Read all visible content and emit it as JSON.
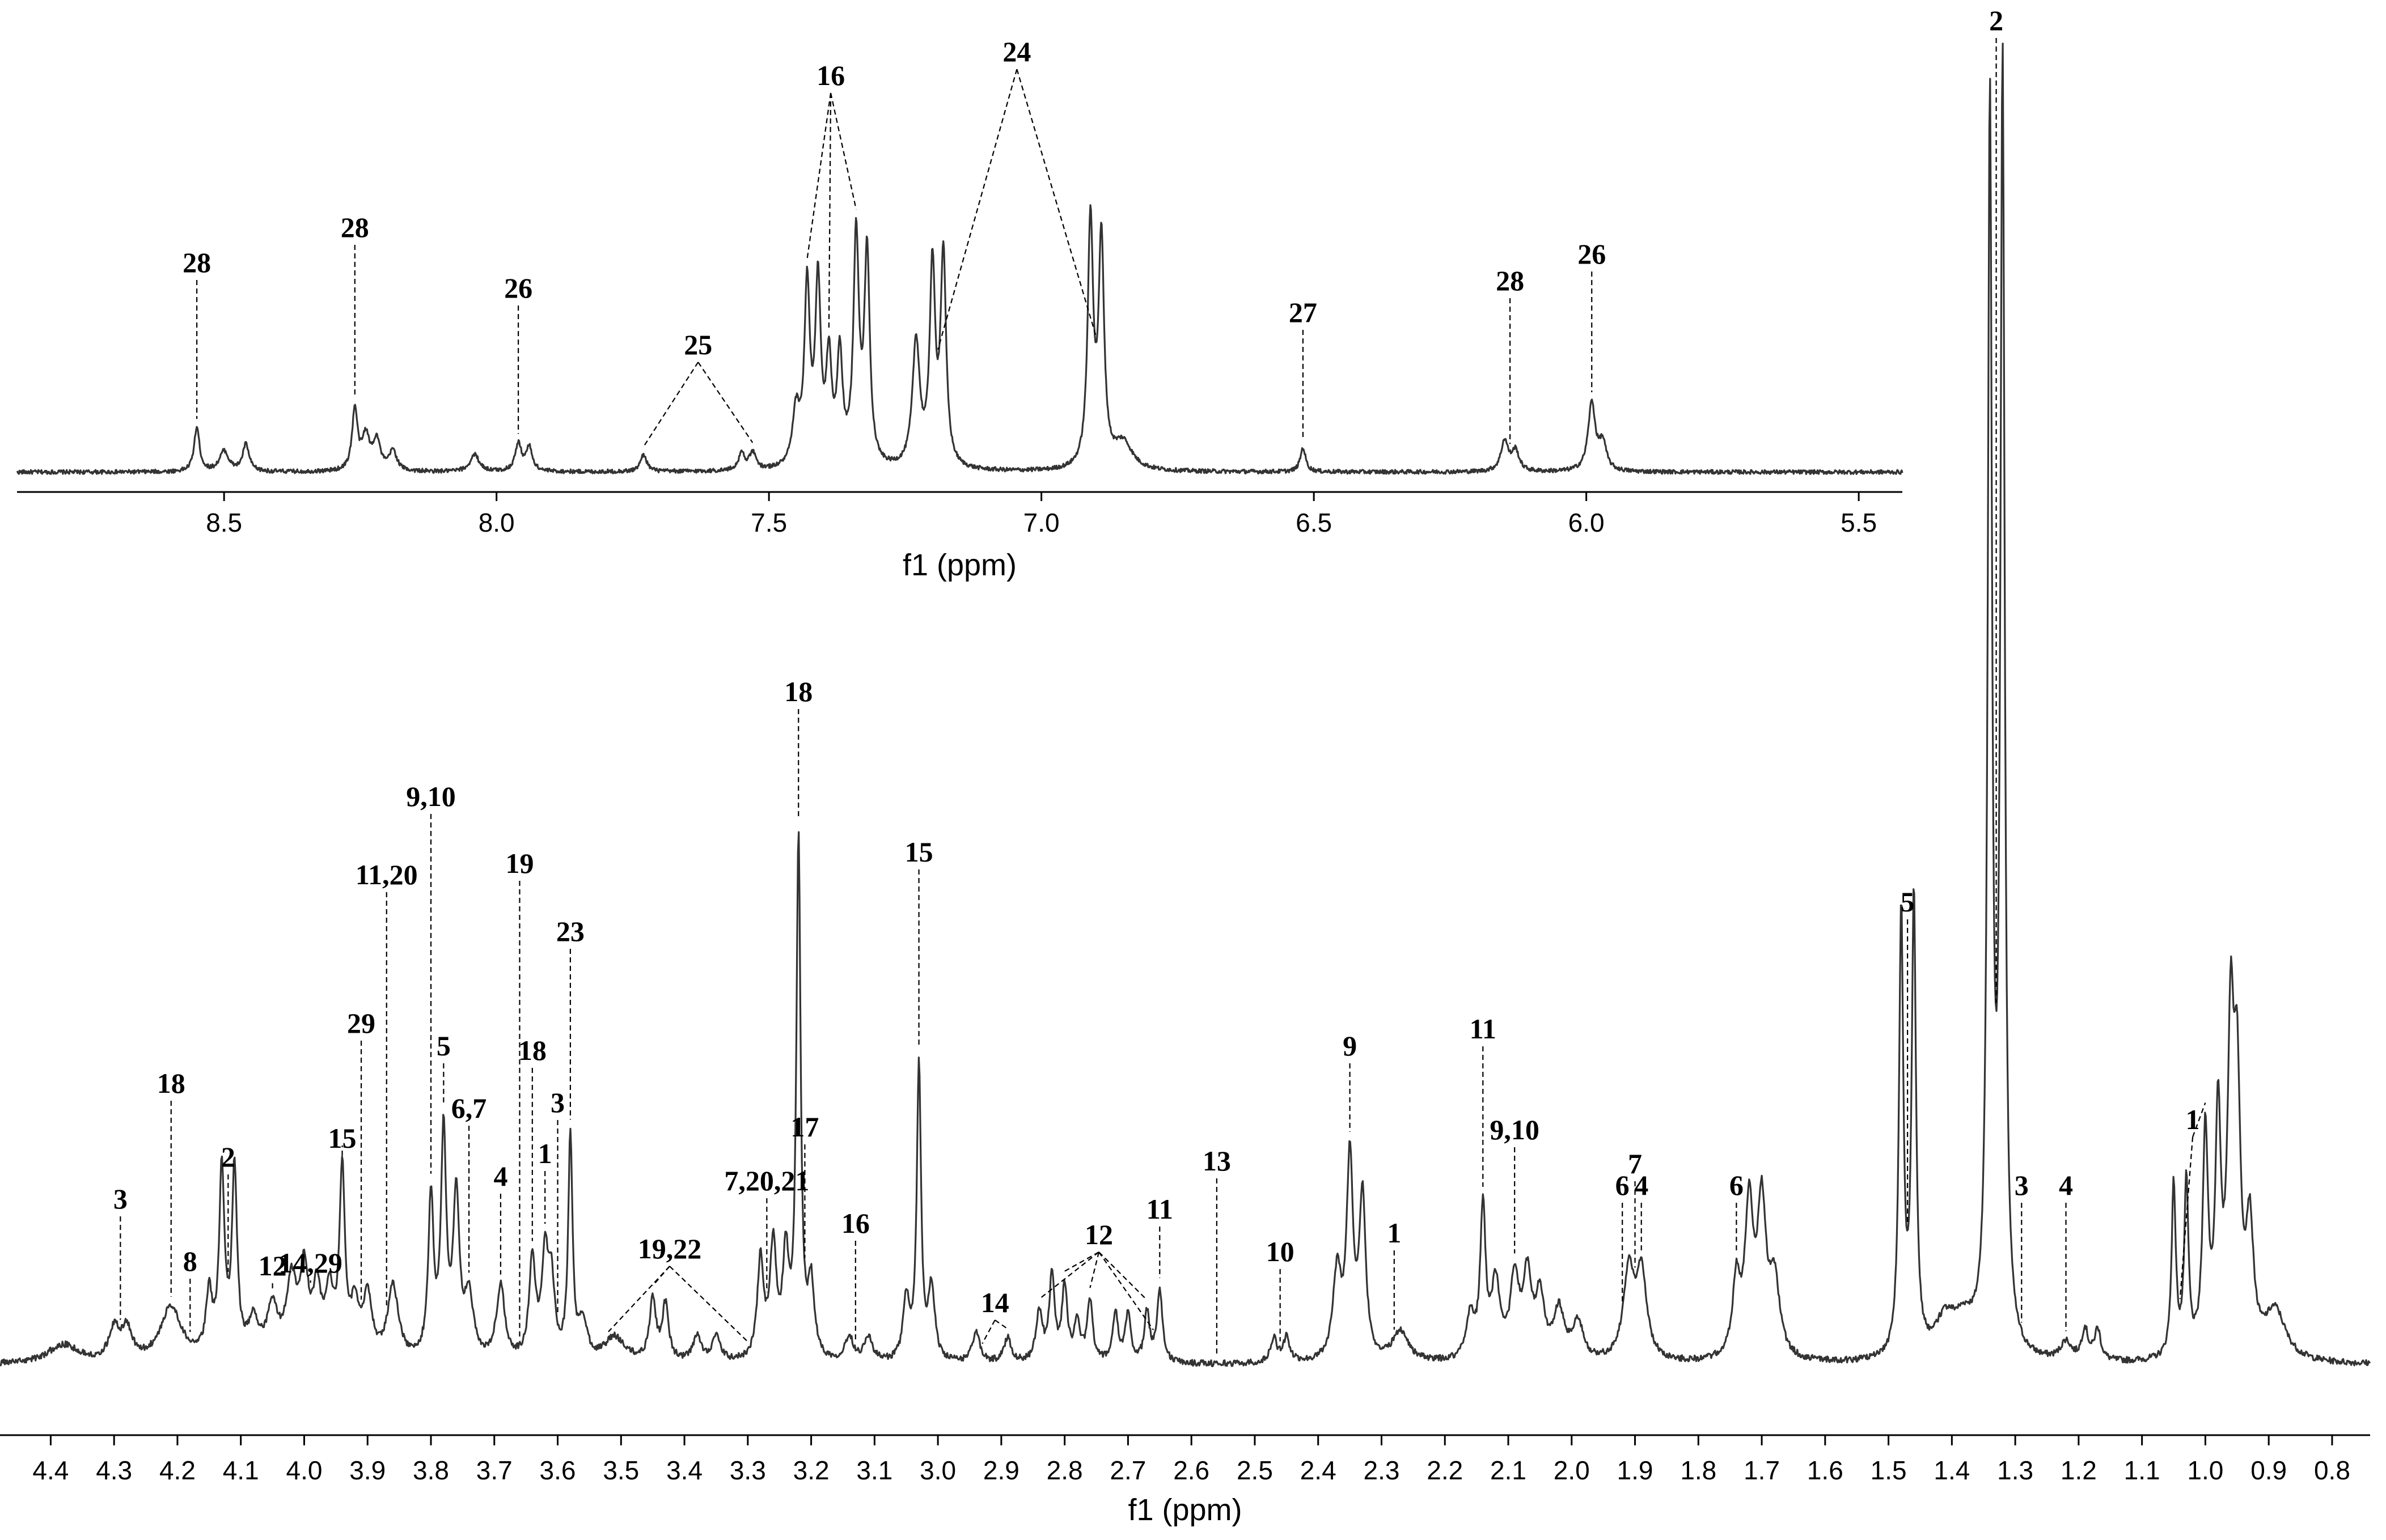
{
  "chart_data": [
    {
      "type": "line",
      "name": "aromatic region",
      "title": "",
      "xlabel": "f1 (ppm)",
      "ylabel": "",
      "xlim": [
        8.88,
        5.42
      ],
      "reversed_x": true,
      "grid": false,
      "ticks": [
        8.5,
        8.0,
        7.5,
        7.0,
        6.5,
        6.0,
        5.5
      ],
      "tick_labels": [
        "8.5",
        "8.0",
        "7.5",
        "7.0",
        "6.5",
        "6.0",
        "5.5"
      ],
      "baseline": 2,
      "noise": 0.6,
      "peaks": [
        {
          "ppm": 8.55,
          "h": 13,
          "w": 0.006
        },
        {
          "ppm": 8.5,
          "h": 6,
          "w": 0.01
        },
        {
          "ppm": 8.46,
          "h": 8,
          "w": 0.007
        },
        {
          "ppm": 8.26,
          "h": 18,
          "w": 0.006
        },
        {
          "ppm": 8.24,
          "h": 10,
          "w": 0.008
        },
        {
          "ppm": 8.22,
          "h": 9,
          "w": 0.008
        },
        {
          "ppm": 8.19,
          "h": 6,
          "w": 0.008
        },
        {
          "ppm": 8.04,
          "h": 5,
          "w": 0.01
        },
        {
          "ppm": 7.96,
          "h": 8,
          "w": 0.007
        },
        {
          "ppm": 7.94,
          "h": 7,
          "w": 0.007
        },
        {
          "ppm": 7.73,
          "h": 5,
          "w": 0.007
        },
        {
          "ppm": 7.55,
          "h": 5,
          "w": 0.007
        },
        {
          "ppm": 7.53,
          "h": 5,
          "w": 0.007
        },
        {
          "ppm": 7.45,
          "h": 16,
          "w": 0.008
        },
        {
          "ppm": 7.43,
          "h": 52,
          "w": 0.006
        },
        {
          "ppm": 7.41,
          "h": 53,
          "w": 0.006
        },
        {
          "ppm": 7.39,
          "h": 30,
          "w": 0.006
        },
        {
          "ppm": 7.37,
          "h": 32,
          "w": 0.006
        },
        {
          "ppm": 7.34,
          "h": 67,
          "w": 0.006
        },
        {
          "ppm": 7.32,
          "h": 62,
          "w": 0.006
        },
        {
          "ppm": 7.23,
          "h": 37,
          "w": 0.008
        },
        {
          "ppm": 7.2,
          "h": 58,
          "w": 0.006
        },
        {
          "ppm": 7.18,
          "h": 62,
          "w": 0.006
        },
        {
          "ppm": 6.91,
          "h": 72,
          "w": 0.006
        },
        {
          "ppm": 6.89,
          "h": 66,
          "w": 0.006
        },
        {
          "ppm": 6.85,
          "h": 8,
          "w": 0.02
        },
        {
          "ppm": 6.52,
          "h": 7,
          "w": 0.006
        },
        {
          "ppm": 6.15,
          "h": 9,
          "w": 0.008
        },
        {
          "ppm": 6.13,
          "h": 6,
          "w": 0.008
        },
        {
          "ppm": 5.99,
          "h": 20,
          "w": 0.008
        },
        {
          "ppm": 5.97,
          "h": 8,
          "w": 0.008
        }
      ],
      "annotations": [
        {
          "label": "28",
          "targets": [
            8.55
          ]
        },
        {
          "label": "28",
          "targets": [
            8.26
          ]
        },
        {
          "label": "26",
          "targets": [
            7.96
          ]
        },
        {
          "label": "25",
          "targets": [
            7.73,
            7.53
          ]
        },
        {
          "label": "16",
          "targets": [
            7.43,
            7.39,
            7.34
          ]
        },
        {
          "label": "24",
          "targets": [
            7.19,
            6.9
          ]
        },
        {
          "label": "27",
          "targets": [
            6.52
          ]
        },
        {
          "label": "28",
          "targets": [
            6.14
          ]
        },
        {
          "label": "26",
          "targets": [
            5.99
          ]
        }
      ]
    },
    {
      "type": "line",
      "name": "aliphatic region",
      "title": "",
      "xlabel": "f1 (ppm)",
      "ylabel": "",
      "xlim": [
        4.48,
        0.74
      ],
      "reversed_x": true,
      "grid": false,
      "ticks": [
        4.4,
        4.3,
        4.2,
        4.1,
        4.0,
        3.9,
        3.8,
        3.7,
        3.6,
        3.5,
        3.4,
        3.3,
        3.2,
        3.1,
        3.0,
        2.9,
        2.8,
        2.7,
        2.6,
        2.5,
        2.4,
        2.3,
        2.2,
        2.1,
        2.0,
        1.9,
        1.8,
        1.7,
        1.6,
        1.5,
        1.4,
        1.3,
        1.2,
        1.1,
        1.0,
        0.9,
        0.8
      ],
      "tick_labels": [
        "4.4",
        "4.3",
        "4.2",
        "4.1",
        "4.0",
        "3.9",
        "3.8",
        "3.7",
        "3.6",
        "3.5",
        "3.4",
        "3.3",
        "3.2",
        "3.1",
        "3.0",
        "2.9",
        "2.8",
        "2.7",
        "2.6",
        "2.5",
        "2.4",
        "2.3",
        "2.2",
        "2.1",
        "2.0",
        "1.9",
        "1.8",
        "1.7",
        "1.6",
        "1.5",
        "1.4",
        "1.3",
        "1.2",
        "1.1",
        "1.0",
        "0.9",
        "0.8"
      ],
      "baseline": 1,
      "noise": 0.25,
      "peaks": [
        {
          "ppm": 4.38,
          "h": 1.5,
          "w": 0.03
        },
        {
          "ppm": 4.3,
          "h": 2.5,
          "w": 0.01
        },
        {
          "ppm": 4.28,
          "h": 2.5,
          "w": 0.01
        },
        {
          "ppm": 4.21,
          "h": 4.5,
          "w": 0.02
        },
        {
          "ppm": 4.15,
          "h": 5,
          "w": 0.006
        },
        {
          "ppm": 4.13,
          "h": 15,
          "w": 0.005
        },
        {
          "ppm": 4.11,
          "h": 15,
          "w": 0.005
        },
        {
          "ppm": 4.08,
          "h": 3,
          "w": 0.01
        },
        {
          "ppm": 4.05,
          "h": 4,
          "w": 0.01
        },
        {
          "ppm": 4.02,
          "h": 6,
          "w": 0.01
        },
        {
          "ppm": 4.0,
          "h": 6.5,
          "w": 0.008
        },
        {
          "ppm": 3.98,
          "h": 5,
          "w": 0.008
        },
        {
          "ppm": 3.96,
          "h": 5,
          "w": 0.008
        },
        {
          "ppm": 3.94,
          "h": 15,
          "w": 0.005
        },
        {
          "ppm": 3.92,
          "h": 4,
          "w": 0.008
        },
        {
          "ppm": 3.9,
          "h": 5,
          "w": 0.008
        },
        {
          "ppm": 3.86,
          "h": 6,
          "w": 0.01
        },
        {
          "ppm": 3.8,
          "h": 13,
          "w": 0.005
        },
        {
          "ppm": 3.78,
          "h": 18,
          "w": 0.005
        },
        {
          "ppm": 3.76,
          "h": 13,
          "w": 0.006
        },
        {
          "ppm": 3.74,
          "h": 5,
          "w": 0.008
        },
        {
          "ppm": 3.69,
          "h": 6,
          "w": 0.008
        },
        {
          "ppm": 3.64,
          "h": 8,
          "w": 0.006
        },
        {
          "ppm": 3.62,
          "h": 8,
          "w": 0.006
        },
        {
          "ppm": 3.61,
          "h": 6,
          "w": 0.006
        },
        {
          "ppm": 3.58,
          "h": 18,
          "w": 0.004
        },
        {
          "ppm": 3.56,
          "h": 3,
          "w": 0.008
        },
        {
          "ppm": 3.51,
          "h": 2,
          "w": 0.02
        },
        {
          "ppm": 3.45,
          "h": 5,
          "w": 0.006
        },
        {
          "ppm": 3.43,
          "h": 4.5,
          "w": 0.006
        },
        {
          "ppm": 3.38,
          "h": 2,
          "w": 0.008
        },
        {
          "ppm": 3.35,
          "h": 2,
          "w": 0.008
        },
        {
          "ppm": 3.28,
          "h": 8,
          "w": 0.006
        },
        {
          "ppm": 3.26,
          "h": 9,
          "w": 0.006
        },
        {
          "ppm": 3.24,
          "h": 8,
          "w": 0.006
        },
        {
          "ppm": 3.22,
          "h": 42,
          "w": 0.004
        },
        {
          "ppm": 3.2,
          "h": 6,
          "w": 0.006
        },
        {
          "ppm": 3.14,
          "h": 2,
          "w": 0.008
        },
        {
          "ppm": 3.11,
          "h": 2,
          "w": 0.008
        },
        {
          "ppm": 3.05,
          "h": 5,
          "w": 0.006
        },
        {
          "ppm": 3.03,
          "h": 24,
          "w": 0.004
        },
        {
          "ppm": 3.01,
          "h": 6,
          "w": 0.006
        },
        {
          "ppm": 2.94,
          "h": 2.5,
          "w": 0.007
        },
        {
          "ppm": 2.89,
          "h": 2,
          "w": 0.007
        },
        {
          "ppm": 2.84,
          "h": 4,
          "w": 0.006
        },
        {
          "ppm": 2.82,
          "h": 7,
          "w": 0.005
        },
        {
          "ppm": 2.8,
          "h": 6,
          "w": 0.005
        },
        {
          "ppm": 2.78,
          "h": 3,
          "w": 0.006
        },
        {
          "ppm": 2.76,
          "h": 5,
          "w": 0.005
        },
        {
          "ppm": 2.72,
          "h": 4,
          "w": 0.005
        },
        {
          "ppm": 2.7,
          "h": 4,
          "w": 0.005
        },
        {
          "ppm": 2.67,
          "h": 4,
          "w": 0.005
        },
        {
          "ppm": 2.65,
          "h": 6,
          "w": 0.005
        },
        {
          "ppm": 2.47,
          "h": 2,
          "w": 0.006
        },
        {
          "ppm": 2.45,
          "h": 2,
          "w": 0.006
        },
        {
          "ppm": 2.37,
          "h": 7,
          "w": 0.008
        },
        {
          "ppm": 2.35,
          "h": 16,
          "w": 0.006
        },
        {
          "ppm": 2.33,
          "h": 13,
          "w": 0.006
        },
        {
          "ppm": 2.27,
          "h": 2.5,
          "w": 0.015
        },
        {
          "ppm": 2.16,
          "h": 3.5,
          "w": 0.008
        },
        {
          "ppm": 2.14,
          "h": 12,
          "w": 0.005
        },
        {
          "ppm": 2.12,
          "h": 6,
          "w": 0.008
        },
        {
          "ppm": 2.09,
          "h": 6.5,
          "w": 0.008
        },
        {
          "ppm": 2.07,
          "h": 6.5,
          "w": 0.008
        },
        {
          "ppm": 2.05,
          "h": 5,
          "w": 0.008
        },
        {
          "ppm": 2.02,
          "h": 4,
          "w": 0.01
        },
        {
          "ppm": 1.99,
          "h": 3,
          "w": 0.01
        },
        {
          "ppm": 1.91,
          "h": 7,
          "w": 0.01
        },
        {
          "ppm": 1.89,
          "h": 7,
          "w": 0.01
        },
        {
          "ppm": 1.74,
          "h": 6,
          "w": 0.007
        },
        {
          "ppm": 1.72,
          "h": 12,
          "w": 0.008
        },
        {
          "ppm": 1.7,
          "h": 12,
          "w": 0.008
        },
        {
          "ppm": 1.68,
          "h": 6,
          "w": 0.01
        },
        {
          "ppm": 1.48,
          "h": 36,
          "w": 0.004
        },
        {
          "ppm": 1.46,
          "h": 37,
          "w": 0.004
        },
        {
          "ppm": 1.41,
          "h": 3,
          "w": 0.02
        },
        {
          "ppm": 1.38,
          "h": 2.5,
          "w": 0.02
        },
        {
          "ppm": 1.34,
          "h": 100,
          "w": 0.004
        },
        {
          "ppm": 1.32,
          "h": 103,
          "w": 0.004
        },
        {
          "ppm": 1.22,
          "h": 1.5,
          "w": 0.01
        },
        {
          "ppm": 1.19,
          "h": 2.5,
          "w": 0.006
        },
        {
          "ppm": 1.17,
          "h": 2.5,
          "w": 0.006
        },
        {
          "ppm": 1.05,
          "h": 14,
          "w": 0.004
        },
        {
          "ppm": 1.03,
          "h": 14,
          "w": 0.004
        },
        {
          "ppm": 1.0,
          "h": 18,
          "w": 0.005
        },
        {
          "ppm": 0.98,
          "h": 19,
          "w": 0.005
        },
        {
          "ppm": 0.96,
          "h": 25,
          "w": 0.006
        },
        {
          "ppm": 0.95,
          "h": 20,
          "w": 0.006
        },
        {
          "ppm": 0.93,
          "h": 10,
          "w": 0.007
        },
        {
          "ppm": 0.89,
          "h": 4,
          "w": 0.02
        }
      ],
      "annotations": [
        {
          "label": "3",
          "targets": [
            4.29
          ]
        },
        {
          "label": "18",
          "targets": [
            4.21
          ]
        },
        {
          "label": "8",
          "targets": [
            4.18
          ]
        },
        {
          "label": "2",
          "targets": [
            4.12
          ]
        },
        {
          "label": "12",
          "targets": [
            4.05
          ]
        },
        {
          "label": "14,29",
          "targets": [
            3.99
          ]
        },
        {
          "label": "15",
          "targets": [
            3.94
          ]
        },
        {
          "label": "29",
          "targets": [
            3.91
          ]
        },
        {
          "label": "11,20",
          "targets": [
            3.87
          ]
        },
        {
          "label": "9,10",
          "targets": [
            3.8
          ]
        },
        {
          "label": "5",
          "targets": [
            3.78
          ]
        },
        {
          "label": "6,7",
          "targets": [
            3.74
          ]
        },
        {
          "label": "4",
          "targets": [
            3.69
          ]
        },
        {
          "label": "19",
          "targets": [
            3.66
          ]
        },
        {
          "label": "18",
          "targets": [
            3.64
          ]
        },
        {
          "label": "1",
          "targets": [
            3.62
          ]
        },
        {
          "label": "3",
          "targets": [
            3.6
          ]
        },
        {
          "label": "23",
          "targets": [
            3.58
          ]
        },
        {
          "label": "19,22",
          "targets": [
            3.52,
            3.45,
            3.3
          ]
        },
        {
          "label": "7,20,21",
          "targets": [
            3.27
          ]
        },
        {
          "label": "18",
          "targets": [
            3.22
          ]
        },
        {
          "label": "17",
          "targets": [
            3.21
          ]
        },
        {
          "label": "16",
          "targets": [
            3.13
          ]
        },
        {
          "label": "15",
          "targets": [
            3.03
          ]
        },
        {
          "label": "14",
          "targets": [
            2.93,
            2.89
          ]
        },
        {
          "label": "12",
          "targets": [
            2.84,
            2.8,
            2.76,
            2.67,
            2.66
          ]
        },
        {
          "label": "11",
          "targets": [
            2.65
          ]
        },
        {
          "label": "13",
          "targets": [
            2.56
          ]
        },
        {
          "label": "10",
          "targets": [
            2.46
          ]
        },
        {
          "label": "9",
          "targets": [
            2.35
          ]
        },
        {
          "label": "1",
          "targets": [
            2.28
          ]
        },
        {
          "label": "11",
          "targets": [
            2.14
          ]
        },
        {
          "label": "9,10",
          "targets": [
            2.09
          ]
        },
        {
          "label": "6",
          "targets": [
            1.92
          ]
        },
        {
          "label": "7",
          "targets": [
            1.9
          ]
        },
        {
          "label": "4",
          "targets": [
            1.89
          ]
        },
        {
          "label": "6",
          "targets": [
            1.74
          ]
        },
        {
          "label": "5",
          "targets": [
            1.47
          ]
        },
        {
          "label": "2",
          "targets": [
            1.33
          ]
        },
        {
          "label": "3",
          "targets": [
            1.29
          ]
        },
        {
          "label": "4",
          "targets": [
            1.22
          ]
        },
        {
          "label": "1",
          "targets": [
            1.04,
            1.0
          ]
        }
      ]
    }
  ]
}
